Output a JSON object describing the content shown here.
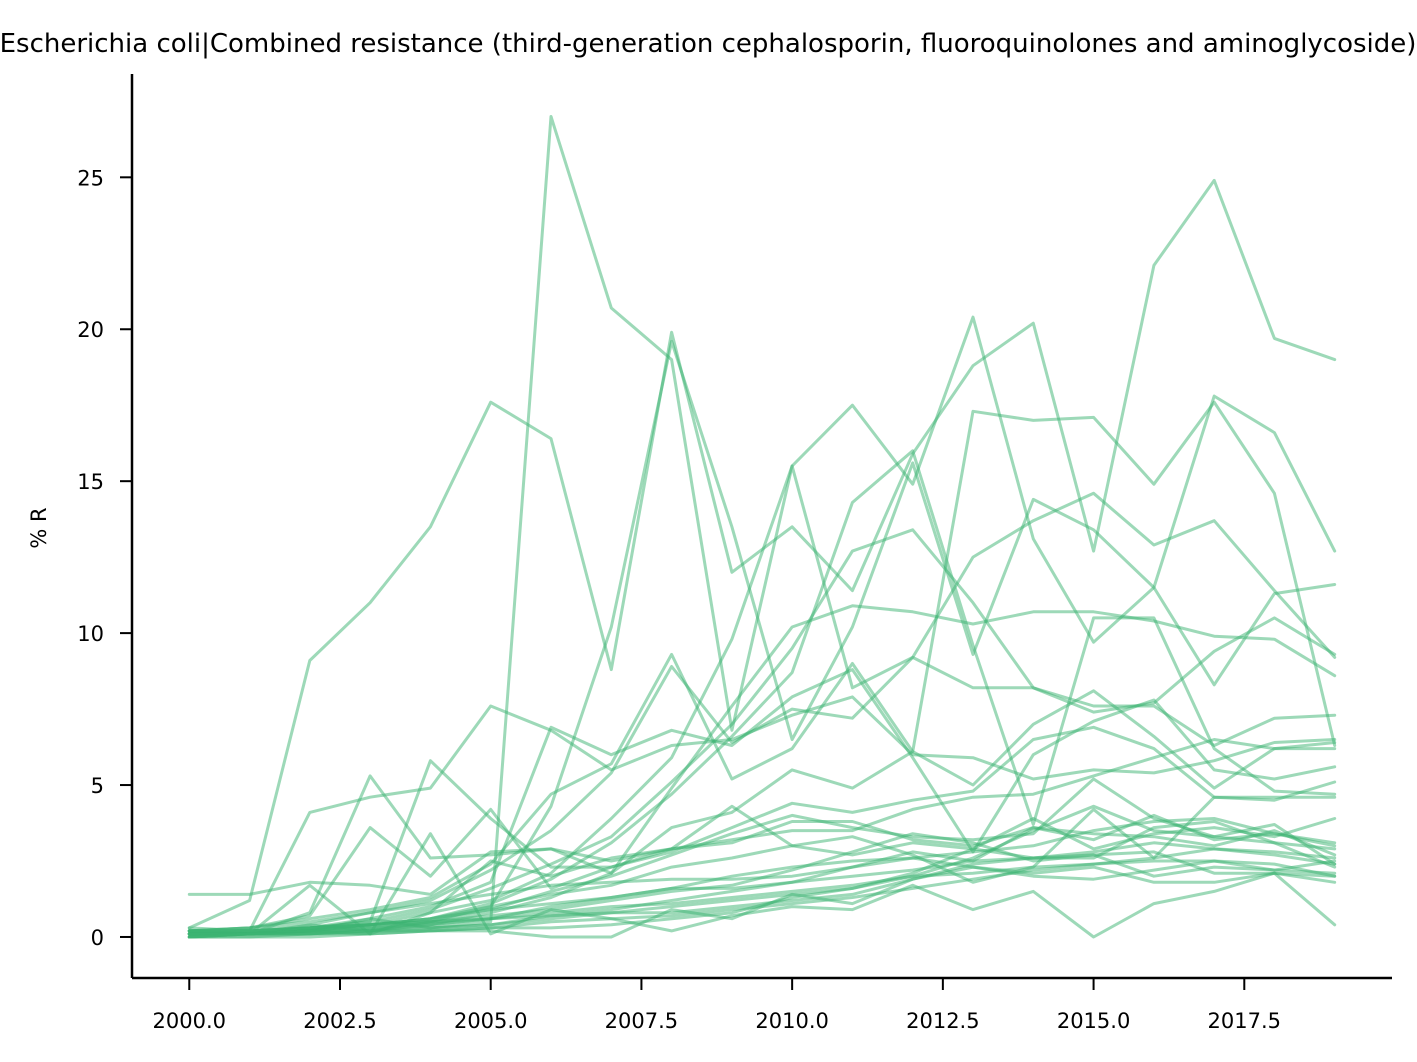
{
  "chart_data": {
    "type": "line",
    "title": "Escherichia coli|Combined resistance (third-generation cephalosporin, fluoroquinolones and aminoglycoside)",
    "xlabel": "",
    "ylabel": "% R",
    "xlim": [
      1999.05,
      2019.95
    ],
    "ylim": [
      -1.35,
      28.4
    ],
    "xticks": [
      2000.0,
      2002.5,
      2005.0,
      2007.5,
      2010.0,
      2012.5,
      2015.0,
      2017.5
    ],
    "xtick_labels": [
      "2000.0",
      "2002.5",
      "2005.0",
      "2007.5",
      "2010.0",
      "2012.5",
      "2015.0",
      "2017.5"
    ],
    "yticks": [
      0,
      5,
      10,
      15,
      20,
      25
    ],
    "ytick_labels": [
      "0",
      "5",
      "10",
      "15",
      "20",
      "25"
    ],
    "grid": false,
    "legend": "none",
    "line_color": "#3cb371",
    "line_opacity": 0.5,
    "x": [
      2000,
      2001,
      2002,
      2003,
      2004,
      2005,
      2006,
      2007,
      2008,
      2009,
      2010,
      2011,
      2012,
      2013,
      2014,
      2015,
      2016,
      2017,
      2018,
      2019
    ],
    "series": [
      {
        "values": [
          0.3,
          1.2,
          9.1,
          11.0,
          13.5,
          17.6,
          16.4,
          8.8,
          19.9,
          12.0,
          13.5,
          11.4,
          15.9,
          18.8,
          20.2,
          12.7,
          22.1,
          24.9,
          19.7,
          19.0
        ]
      },
      {
        "values": [
          0.1,
          0.1,
          0.2,
          0.6,
          0.3,
          0.5,
          27.0,
          20.7,
          19.0,
          6.8,
          15.5,
          8.2,
          9.2,
          12.5,
          13.7,
          14.6,
          12.9,
          13.7,
          11.4,
          9.2
        ]
      },
      {
        "values": [
          0.2,
          0.1,
          0.4,
          0.2,
          0.5,
          1.0,
          4.3,
          10.2,
          19.6,
          13.5,
          6.5,
          10.2,
          15.6,
          9.3,
          14.4,
          13.4,
          11.5,
          8.3,
          11.3,
          11.6
        ]
      },
      {
        "values": [
          0.1,
          0.1,
          0.3,
          0.4,
          0.8,
          1.2,
          2.1,
          3.9,
          5.9,
          9.8,
          15.5,
          17.5,
          14.9,
          20.4,
          13.1,
          9.7,
          11.5,
          17.8,
          16.6,
          12.7
        ]
      },
      {
        "values": [
          1.4,
          1.4,
          1.8,
          1.7,
          1.4,
          2.8,
          2.9,
          2.1,
          3.6,
          4.1,
          5.5,
          4.9,
          6.1,
          17.3,
          17.0,
          17.1,
          14.9,
          17.6,
          14.6,
          6.3
        ]
      },
      {
        "values": [
          0.2,
          0.1,
          0.2,
          0.3,
          0.4,
          0.8,
          1.3,
          2.1,
          4.9,
          7.6,
          10.2,
          10.9,
          10.7,
          10.3,
          10.7,
          10.7,
          10.4,
          9.9,
          9.8,
          8.6
        ]
      },
      {
        "values": [
          0.1,
          0.1,
          0.3,
          0.5,
          0.9,
          1.6,
          2.4,
          3.3,
          5.1,
          7.0,
          9.5,
          12.7,
          13.4,
          11.0,
          8.2,
          7.4,
          7.7,
          9.4,
          10.5,
          9.3
        ]
      },
      {
        "values": [
          0.0,
          0.1,
          0.2,
          0.4,
          0.6,
          1.1,
          1.9,
          3.1,
          4.7,
          6.6,
          8.7,
          14.3,
          16.0,
          9.6,
          3.7,
          10.5,
          10.5,
          6.2,
          4.8,
          4.7
        ]
      },
      {
        "values": [
          0.1,
          0.2,
          0.4,
          0.8,
          1.2,
          2.2,
          3.5,
          5.4,
          8.9,
          6.4,
          7.5,
          7.2,
          9.2,
          8.2,
          8.2,
          7.6,
          7.6,
          6.3,
          7.2,
          7.3
        ]
      },
      {
        "values": [
          0.2,
          0.3,
          0.6,
          0.9,
          1.3,
          2.4,
          4.7,
          5.7,
          9.3,
          5.2,
          6.2,
          9.0,
          6.1,
          5.0,
          7.0,
          8.1,
          6.6,
          4.9,
          6.2,
          6.4
        ]
      },
      {
        "values": [
          0.1,
          0.2,
          0.3,
          0.6,
          1.0,
          1.8,
          6.9,
          6.0,
          6.8,
          6.3,
          7.9,
          8.8,
          5.9,
          2.8,
          6.0,
          7.1,
          7.8,
          5.5,
          5.2,
          5.6
        ]
      },
      {
        "values": [
          0.3,
          0.2,
          4.1,
          4.6,
          4.9,
          7.6,
          6.8,
          5.5,
          6.3,
          6.5,
          7.3,
          7.9,
          6.0,
          5.9,
          5.2,
          5.5,
          5.4,
          5.8,
          6.4,
          6.5
        ]
      },
      {
        "values": [
          0.2,
          0.1,
          0.8,
          5.3,
          2.6,
          2.7,
          2.9,
          2.5,
          2.9,
          3.2,
          3.5,
          3.5,
          4.2,
          4.6,
          4.7,
          5.3,
          5.9,
          6.5,
          6.2,
          6.2
        ]
      },
      {
        "values": [
          0.1,
          0.2,
          0.3,
          0.5,
          5.8,
          3.9,
          2.3,
          2.3,
          2.8,
          3.6,
          4.4,
          4.1,
          4.5,
          4.8,
          6.5,
          6.9,
          6.2,
          4.6,
          4.6,
          4.6
        ]
      },
      {
        "values": [
          0.0,
          0.1,
          0.2,
          0.3,
          0.5,
          0.9,
          1.5,
          2.0,
          2.7,
          3.4,
          4.0,
          3.6,
          3.3,
          3.2,
          3.4,
          5.2,
          3.9,
          3.3,
          3.7,
          2.4
        ]
      },
      {
        "values": [
          0.1,
          0.1,
          0.2,
          0.4,
          0.6,
          1.0,
          1.4,
          1.7,
          2.3,
          2.6,
          3.0,
          2.7,
          3.1,
          2.9,
          2.6,
          2.6,
          3.6,
          3.8,
          3.1,
          2.3
        ]
      },
      {
        "values": [
          0.2,
          0.3,
          0.5,
          0.8,
          1.1,
          1.4,
          1.7,
          1.8,
          1.9,
          1.9,
          2.0,
          2.3,
          2.6,
          2.8,
          3.0,
          3.5,
          3.8,
          3.9,
          3.4,
          3.0
        ]
      },
      {
        "values": [
          0.1,
          0.1,
          0.2,
          0.2,
          0.3,
          0.4,
          0.7,
          0.8,
          0.8,
          1.0,
          1.2,
          1.4,
          1.9,
          2.4,
          2.6,
          2.8,
          3.1,
          2.9,
          2.7,
          2.4
        ]
      },
      {
        "values": [
          0.0,
          0.1,
          0.1,
          0.1,
          0.2,
          0.3,
          0.5,
          0.6,
          0.7,
          0.9,
          1.1,
          1.3,
          1.6,
          1.9,
          2.2,
          2.4,
          2.6,
          2.9,
          2.8,
          2.6
        ]
      },
      {
        "values": [
          0.1,
          0.1,
          0.2,
          0.4,
          0.6,
          0.9,
          1.1,
          1.3,
          1.6,
          1.6,
          1.8,
          2.0,
          2.2,
          2.5,
          2.6,
          2.7,
          2.8,
          2.1,
          2.1,
          1.8
        ]
      },
      {
        "values": [
          0.2,
          0.2,
          0.3,
          0.4,
          0.5,
          0.6,
          0.8,
          1.0,
          1.1,
          1.3,
          1.5,
          1.7,
          2.0,
          2.1,
          2.3,
          2.4,
          2.5,
          2.5,
          2.4,
          2.0
        ]
      },
      {
        "values": [
          0.1,
          0.1,
          1.7,
          0.1,
          3.4,
          0.1,
          0.9,
          0.6,
          0.2,
          0.7,
          1.0,
          0.9,
          1.7,
          0.9,
          1.5,
          0.0,
          1.1,
          1.5,
          2.1,
          0.4
        ]
      },
      {
        "values": [
          0.2,
          0.3,
          0.7,
          3.6,
          2.0,
          4.2,
          1.6,
          2.3,
          2.9,
          4.3,
          3.0,
          3.3,
          2.7,
          1.8,
          2.3,
          4.2,
          2.6,
          4.6,
          4.5,
          5.1
        ]
      },
      {
        "values": [
          0.1,
          0.1,
          0.2,
          0.1,
          0.8,
          2.5,
          2.0,
          2.6,
          2.9,
          3.1,
          3.8,
          3.8,
          3.2,
          3.0,
          3.6,
          3.4,
          3.3,
          3.0,
          3.5,
          2.7
        ]
      },
      {
        "values": [
          0.0,
          0.0,
          0.1,
          0.2,
          0.4,
          0.6,
          1.0,
          1.3,
          1.6,
          2.0,
          2.3,
          2.5,
          2.6,
          2.3,
          2.0,
          1.9,
          2.2,
          2.5,
          2.2,
          2.1
        ]
      },
      {
        "values": [
          0.1,
          0.1,
          0.1,
          0.2,
          0.2,
          0.3,
          0.3,
          0.4,
          0.6,
          0.8,
          1.3,
          1.6,
          2.0,
          2.6,
          3.5,
          4.3,
          3.5,
          3.3,
          3.1,
          2.9
        ]
      },
      {
        "values": [
          0.0,
          0.0,
          0.0,
          0.1,
          0.2,
          0.2,
          0.0,
          0.0,
          0.9,
          0.6,
          1.4,
          1.1,
          1.9,
          2.3,
          2.1,
          2.3,
          1.8,
          1.8,
          2.1,
          2.0
        ]
      },
      {
        "values": [
          0.2,
          0.2,
          0.3,
          0.4,
          0.5,
          0.7,
          0.9,
          1.2,
          1.5,
          1.7,
          2.2,
          2.8,
          3.4,
          3.1,
          2.5,
          2.7,
          2.0,
          2.3,
          2.2,
          2.5
        ]
      },
      {
        "values": [
          0.1,
          0.1,
          0.1,
          0.3,
          0.4,
          0.6,
          0.7,
          0.9,
          1.2,
          1.5,
          1.8,
          2.3,
          2.8,
          2.5,
          3.6,
          3.2,
          4.0,
          3.2,
          3.4,
          3.1
        ]
      },
      {
        "values": [
          0.0,
          0.1,
          0.1,
          0.2,
          0.3,
          0.4,
          0.6,
          0.8,
          1.0,
          1.2,
          1.4,
          1.6,
          2.1,
          2.9,
          3.9,
          2.9,
          3.4,
          3.6,
          3.3,
          3.9
        ]
      }
    ]
  }
}
